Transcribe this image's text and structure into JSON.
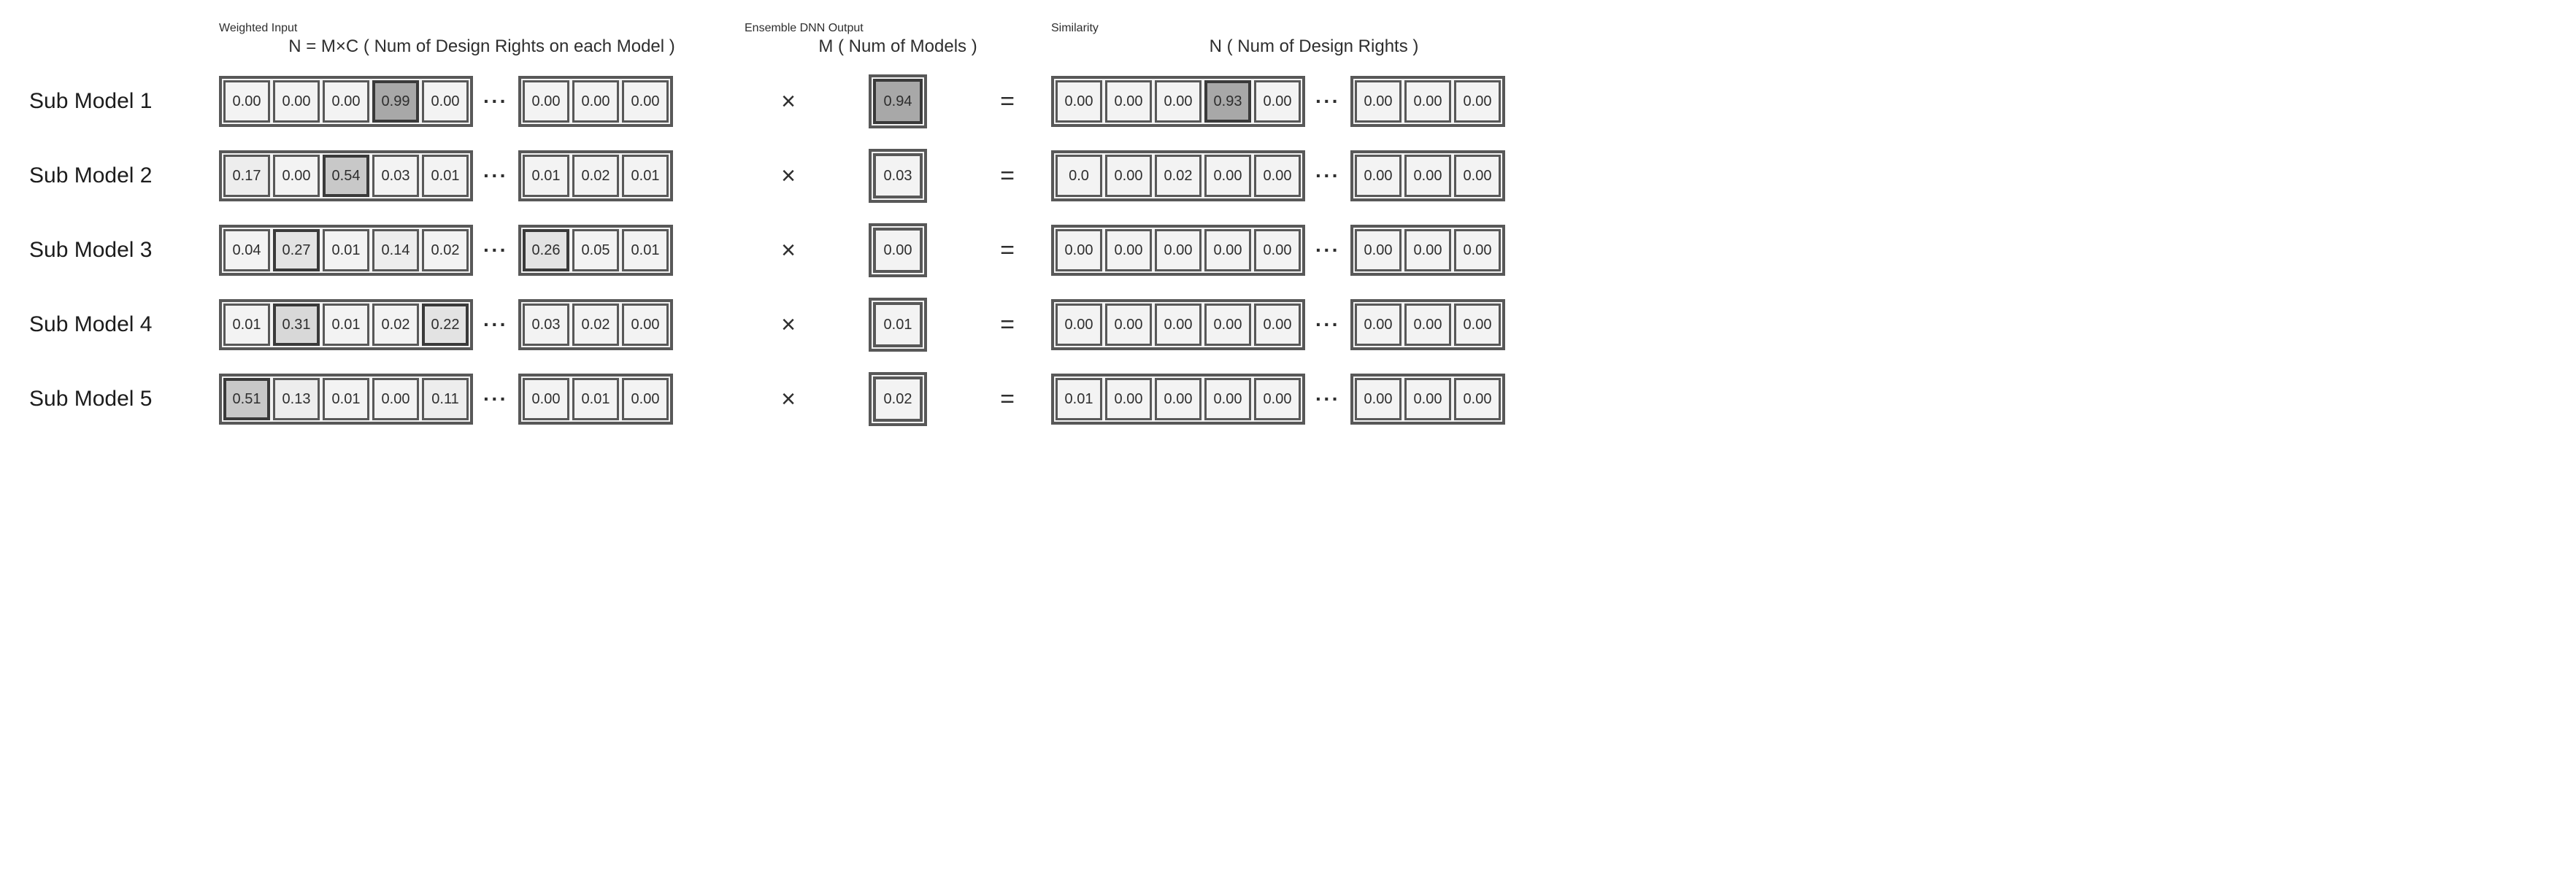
{
  "headers": {
    "weighted_input": {
      "title": "Weighted Input",
      "sub": "N = M×C ( Num of Design Rights on each Model )"
    },
    "ensemble": {
      "title": "Ensemble DNN Output",
      "sub": "M ( Num of  Models )"
    },
    "similarity": {
      "title": "Similarity",
      "sub": "N ( Num of Design Rights )"
    }
  },
  "ops": {
    "times": "×",
    "equals": "=",
    "dots": "···"
  },
  "colors": {
    "cell_border": "#585858",
    "cell_bg_default": "#f3f3f3",
    "text": "#2e2e2e",
    "shade_scale": [
      [
        0.0,
        "#f3f3f3"
      ],
      [
        0.1,
        "#ededed"
      ],
      [
        0.2,
        "#e3e3e3"
      ],
      [
        0.3,
        "#d8d8d8"
      ],
      [
        0.5,
        "#c8c8c8"
      ],
      [
        0.9,
        "#a8a8a8"
      ],
      [
        1.0,
        "#9a9a9a"
      ]
    ],
    "border_highlight_threshold": 0.2,
    "border_highlight_color": "#3a3a3a"
  },
  "layout": {
    "cell_size_wi": {
      "w": 64,
      "h": 58
    },
    "cell_size_ens": {
      "w": 68,
      "h": 62
    },
    "row_label_fontsize": 30,
    "title_fontsize": 44,
    "sub_fontsize": 24,
    "cell_fontsize": 20,
    "op_fontsize": 34
  },
  "rows": [
    {
      "label": "Sub Model 1",
      "weighted_left": [
        "0.00",
        "0.00",
        "0.00",
        "0.99",
        "0.00"
      ],
      "weighted_right": [
        "0.00",
        "0.00",
        "0.00"
      ],
      "ensemble": "0.94",
      "sim_left": [
        "0.00",
        "0.00",
        "0.00",
        "0.93",
        "0.00"
      ],
      "sim_right": [
        "0.00",
        "0.00",
        "0.00"
      ]
    },
    {
      "label": "Sub Model 2",
      "weighted_left": [
        "0.17",
        "0.00",
        "0.54",
        "0.03",
        "0.01"
      ],
      "weighted_right": [
        "0.01",
        "0.02",
        "0.01"
      ],
      "ensemble": "0.03",
      "sim_left": [
        "0.0",
        "0.00",
        "0.02",
        "0.00",
        "0.00"
      ],
      "sim_right": [
        "0.00",
        "0.00",
        "0.00"
      ]
    },
    {
      "label": "Sub Model 3",
      "weighted_left": [
        "0.04",
        "0.27",
        "0.01",
        "0.14",
        "0.02"
      ],
      "weighted_right": [
        "0.26",
        "0.05",
        "0.01"
      ],
      "ensemble": "0.00",
      "sim_left": [
        "0.00",
        "0.00",
        "0.00",
        "0.00",
        "0.00"
      ],
      "sim_right": [
        "0.00",
        "0.00",
        "0.00"
      ]
    },
    {
      "label": "Sub Model 4",
      "weighted_left": [
        "0.01",
        "0.31",
        "0.01",
        "0.02",
        "0.22"
      ],
      "weighted_right": [
        "0.03",
        "0.02",
        "0.00"
      ],
      "ensemble": "0.01",
      "sim_left": [
        "0.00",
        "0.00",
        "0.00",
        "0.00",
        "0.00"
      ],
      "sim_right": [
        "0.00",
        "0.00",
        "0.00"
      ]
    },
    {
      "label": "Sub Model 5",
      "weighted_left": [
        "0.51",
        "0.13",
        "0.01",
        "0.00",
        "0.11"
      ],
      "weighted_right": [
        "0.00",
        "0.01",
        "0.00"
      ],
      "ensemble": "0.02",
      "sim_left": [
        "0.01",
        "0.00",
        "0.00",
        "0.00",
        "0.00"
      ],
      "sim_right": [
        "0.00",
        "0.00",
        "0.00"
      ]
    }
  ]
}
